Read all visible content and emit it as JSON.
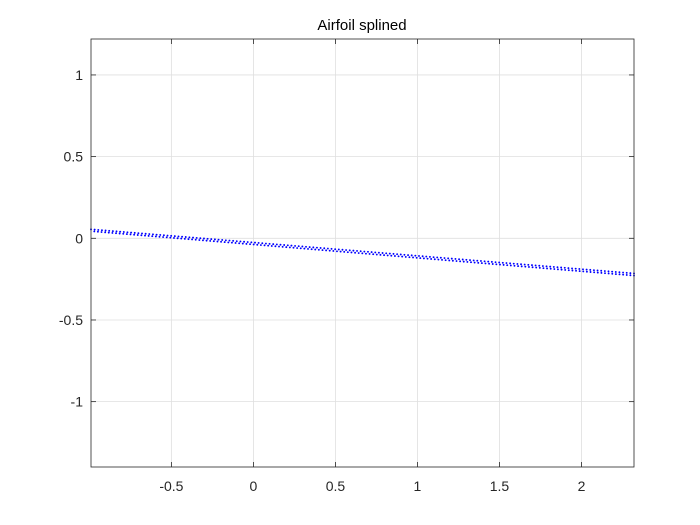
{
  "chart_data": {
    "type": "scatter",
    "title": "Airfoil splined",
    "xlabel": "",
    "ylabel": "",
    "xlim": [
      -0.99,
      2.32
    ],
    "ylim": [
      -1.4,
      1.22
    ],
    "xticks": [
      -0.5,
      0,
      0.5,
      1,
      1.5,
      2
    ],
    "xtick_labels": [
      "-0.5",
      "0",
      "0.5",
      "1",
      "1.5",
      "2"
    ],
    "yticks": [
      -1,
      -0.5,
      0,
      0.5,
      1
    ],
    "ytick_labels": [
      "-1",
      "-0.5",
      "0",
      "0.5",
      "1"
    ],
    "grid": true,
    "legend": "none",
    "series": [
      {
        "marker": "dot",
        "color": "#0000ff",
        "upper": {
          "x_start": -0.99,
          "x_end": 2.32,
          "count": 150,
          "y_at_x_start": 0.055,
          "y_at_x_end": -0.215
        },
        "lower": {
          "x_start": -0.97,
          "x_end": 2.32,
          "count": 150,
          "y_at_x_start": 0.042,
          "y_at_x_end": -0.228
        }
      }
    ]
  },
  "colors": {
    "axis": "#262626",
    "grid": "#dfdfdf",
    "marker": "#0000ff"
  }
}
